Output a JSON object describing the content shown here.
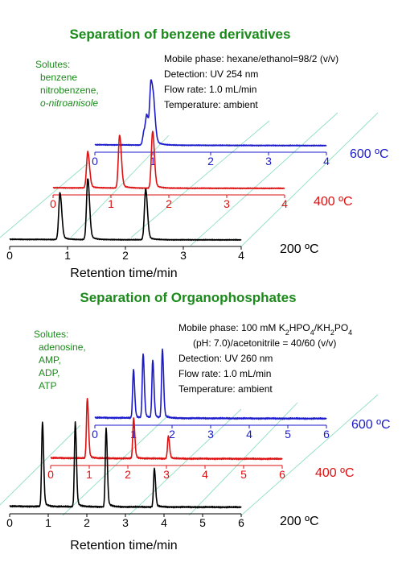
{
  "chart_data": [
    {
      "type": "line",
      "title": "Separation of benzene derivatives",
      "xlabel": "Retention time/min",
      "ylabel": "",
      "xlim": [
        0,
        4
      ],
      "ticks": [
        "0",
        "1",
        "2",
        "3",
        "4"
      ],
      "grid": false,
      "legend": "none",
      "solutes_header": "Solutes:",
      "solutes": [
        {
          "text": "benzene",
          "italic": false
        },
        {
          "text": "nitrobenzene,",
          "italic": false
        },
        {
          "text": "o-nitroanisole",
          "italic": true
        }
      ],
      "conditions": [
        "Mobile phase: hexane/ethanol=98/2 (v/v)",
        "Detection: UV 254 nm",
        "Flow rate: 1.0 mL/min",
        "Temperature: ambient"
      ],
      "series": [
        {
          "name": "200 ºC",
          "color": "#000000",
          "baseline": 0.04,
          "peaks": [
            {
              "t": 0.87,
              "h": 0.97
            },
            {
              "t": 1.35,
              "h": 1.27
            },
            {
              "t": 2.35,
              "h": 1.05
            }
          ]
        },
        {
          "name": "400 ºC",
          "color": "#dd1111",
          "baseline": 0.04,
          "peaks": [
            {
              "t": 0.6,
              "h": 0.75
            },
            {
              "t": 1.15,
              "h": 1.1
            },
            {
              "t": 1.72,
              "h": 1.18
            }
          ]
        },
        {
          "name": "600 ºC",
          "color": "#1a1acc",
          "baseline": 0.06,
          "peaks": [
            {
              "t": 0.85,
              "h": 0.28
            },
            {
              "t": 0.9,
              "h": 0.55
            },
            {
              "t": 0.97,
              "h": 1.25
            },
            {
              "t": 1.02,
              "h": 0.6
            }
          ]
        }
      ]
    },
    {
      "type": "line",
      "title": "Separation of Organophosphates",
      "xlabel": "Retention time/min",
      "ylabel": "",
      "xlim": [
        0,
        6
      ],
      "ticks": [
        "0",
        "1",
        "2",
        "3",
        "4",
        "5",
        "6"
      ],
      "grid": false,
      "legend": "none",
      "solutes_header": "Solutes:",
      "solutes": [
        {
          "text": "adenosine,",
          "italic": false
        },
        {
          "text": "AMP,",
          "italic": false
        },
        {
          "text": "ADP,",
          "italic": false
        },
        {
          "text": "ATP",
          "italic": false
        }
      ],
      "conditions": [
        "Mobile phase: 100 mM K2HPO4/KH2PO4",
        "(pH: 7.0)/acetonitrile = 40/60 (v/v)",
        "Detection: UV 260 nm",
        "Flow rate: 1.0 mL/min",
        "Temperature: ambient"
      ],
      "series": [
        {
          "name": "200 ºC",
          "color": "#000000",
          "baseline": 0.04,
          "peaks": [
            {
              "t": 0.85,
              "h": 1.05
            },
            {
              "t": 1.7,
              "h": 1.05
            },
            {
              "t": 2.5,
              "h": 0.98
            },
            {
              "t": 3.75,
              "h": 0.48
            }
          ]
        },
        {
          "name": "400 ºC",
          "color": "#dd1111",
          "baseline": 0.04,
          "peaks": [
            {
              "t": 0.95,
              "h": 0.75
            },
            {
              "t": 2.15,
              "h": 0.5
            },
            {
              "t": 3.05,
              "h": 0.28
            }
          ]
        },
        {
          "name": "600 ºC",
          "color": "#1a1acc",
          "baseline": 0.04,
          "peaks": [
            {
              "t": 1.0,
              "h": 0.6
            },
            {
              "t": 1.25,
              "h": 0.8
            },
            {
              "t": 1.5,
              "h": 0.72
            },
            {
              "t": 1.75,
              "h": 0.85
            }
          ]
        }
      ]
    }
  ]
}
